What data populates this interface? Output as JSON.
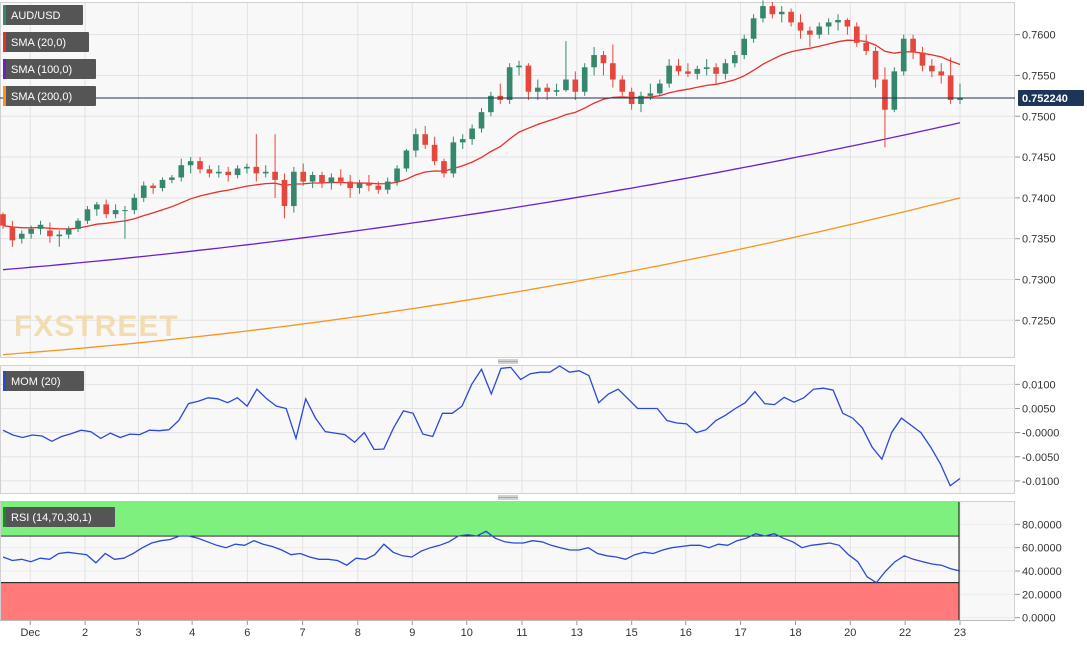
{
  "chart_data": [
    {
      "type": "candlestick",
      "symbol": "AUD/USD",
      "last_price_label": "0.752240",
      "last_price": 0.75224,
      "indicators": [
        {
          "label": "SMA (20,0)",
          "color": "#e8302a"
        },
        {
          "label": "SMA (100,0)",
          "color": "#6a1fd1"
        },
        {
          "label": "SMA (200,0)",
          "color": "#f7941d"
        }
      ],
      "y_ticks": [
        "0.7600",
        "0.7550",
        "0.7500",
        "0.7450",
        "0.7400",
        "0.7350",
        "0.7300",
        "0.7250"
      ],
      "ylim": [
        0.7205,
        0.764
      ],
      "x_ticks": [
        "Dec",
        "2",
        "3",
        "4",
        "6",
        "7",
        "8",
        "9",
        "10",
        "11",
        "13",
        "15",
        "16",
        "17",
        "18",
        "20",
        "22",
        "23"
      ],
      "candles": [
        [
          0.738,
          0.7382,
          0.7362,
          0.7366
        ],
        [
          0.7364,
          0.7372,
          0.734,
          0.7348
        ],
        [
          0.735,
          0.736,
          0.7344,
          0.7356
        ],
        [
          0.7356,
          0.7366,
          0.735,
          0.7362
        ],
        [
          0.7362,
          0.7372,
          0.7355,
          0.7367
        ],
        [
          0.736,
          0.737,
          0.7345,
          0.7353
        ],
        [
          0.7353,
          0.736,
          0.734,
          0.7355
        ],
        [
          0.7355,
          0.7365,
          0.735,
          0.7362
        ],
        [
          0.7362,
          0.7375,
          0.7358,
          0.7372
        ],
        [
          0.7372,
          0.739,
          0.7368,
          0.7386
        ],
        [
          0.7386,
          0.7395,
          0.7378,
          0.7392
        ],
        [
          0.7392,
          0.7398,
          0.7375,
          0.738
        ],
        [
          0.738,
          0.7392,
          0.7375,
          0.7385
        ],
        [
          0.7385,
          0.739,
          0.735,
          0.7385
        ],
        [
          0.7385,
          0.7405,
          0.738,
          0.74
        ],
        [
          0.74,
          0.742,
          0.7395,
          0.7415
        ],
        [
          0.7415,
          0.7418,
          0.7405,
          0.7412
        ],
        [
          0.7412,
          0.7425,
          0.7408,
          0.7422
        ],
        [
          0.7422,
          0.7428,
          0.7418,
          0.7425
        ],
        [
          0.7425,
          0.7448,
          0.742,
          0.744
        ],
        [
          0.744,
          0.745,
          0.743,
          0.7445
        ],
        [
          0.7445,
          0.745,
          0.743,
          0.7435
        ],
        [
          0.7435,
          0.744,
          0.7425,
          0.743
        ],
        [
          0.743,
          0.744,
          0.7425,
          0.7432
        ],
        [
          0.7432,
          0.7438,
          0.742,
          0.7428
        ],
        [
          0.7428,
          0.744,
          0.7424,
          0.7436
        ],
        [
          0.7436,
          0.7442,
          0.743,
          0.7438
        ],
        [
          0.7438,
          0.7478,
          0.742,
          0.743
        ],
        [
          0.743,
          0.744,
          0.7425,
          0.7432
        ],
        [
          0.7432,
          0.7478,
          0.74,
          0.7422
        ],
        [
          0.7422,
          0.743,
          0.7375,
          0.739
        ],
        [
          0.739,
          0.7438,
          0.7382,
          0.7432
        ],
        [
          0.7432,
          0.7442,
          0.7415,
          0.742
        ],
        [
          0.742,
          0.7432,
          0.7412,
          0.7428
        ],
        [
          0.7428,
          0.7432,
          0.7412,
          0.7418
        ],
        [
          0.7418,
          0.743,
          0.741,
          0.7425
        ],
        [
          0.7425,
          0.7435,
          0.7415,
          0.742
        ],
        [
          0.742,
          0.7428,
          0.74,
          0.7412
        ],
        [
          0.7412,
          0.7422,
          0.7405,
          0.7418
        ],
        [
          0.7418,
          0.7428,
          0.7408,
          0.7415
        ],
        [
          0.7415,
          0.742,
          0.7405,
          0.741
        ],
        [
          0.741,
          0.7425,
          0.7405,
          0.742
        ],
        [
          0.742,
          0.744,
          0.7415,
          0.7436
        ],
        [
          0.7436,
          0.746,
          0.7432,
          0.7458
        ],
        [
          0.7458,
          0.7485,
          0.745,
          0.7478
        ],
        [
          0.7478,
          0.7488,
          0.746,
          0.7465
        ],
        [
          0.7465,
          0.7475,
          0.744,
          0.7445
        ],
        [
          0.7445,
          0.7448,
          0.7425,
          0.743
        ],
        [
          0.743,
          0.7475,
          0.7425,
          0.7468
        ],
        [
          0.7468,
          0.7478,
          0.746,
          0.7472
        ],
        [
          0.7472,
          0.749,
          0.7465,
          0.7485
        ],
        [
          0.7485,
          0.751,
          0.748,
          0.7505
        ],
        [
          0.7505,
          0.753,
          0.75,
          0.7525
        ],
        [
          0.7525,
          0.754,
          0.7515,
          0.752
        ],
        [
          0.752,
          0.7565,
          0.7515,
          0.756
        ],
        [
          0.756,
          0.7568,
          0.755,
          0.7562
        ],
        [
          0.7562,
          0.7565,
          0.752,
          0.753
        ],
        [
          0.753,
          0.7545,
          0.752,
          0.7535
        ],
        [
          0.7535,
          0.754,
          0.752,
          0.753
        ],
        [
          0.753,
          0.754,
          0.7525,
          0.7532
        ],
        [
          0.7532,
          0.7592,
          0.753,
          0.7545
        ],
        [
          0.7545,
          0.7555,
          0.752,
          0.753
        ],
        [
          0.753,
          0.7565,
          0.7525,
          0.756
        ],
        [
          0.756,
          0.7585,
          0.755,
          0.7575
        ],
        [
          0.7575,
          0.758,
          0.755,
          0.7565
        ],
        [
          0.7565,
          0.7588,
          0.7535,
          0.7545
        ],
        [
          0.7545,
          0.755,
          0.7525,
          0.753
        ],
        [
          0.753,
          0.7535,
          0.7508,
          0.7515
        ],
        [
          0.7515,
          0.753,
          0.7505,
          0.7525
        ],
        [
          0.7525,
          0.754,
          0.752,
          0.7528
        ],
        [
          0.7528,
          0.7545,
          0.7525,
          0.754
        ],
        [
          0.754,
          0.757,
          0.7535,
          0.7562
        ],
        [
          0.7562,
          0.757,
          0.755,
          0.7555
        ],
        [
          0.7555,
          0.7565,
          0.7548,
          0.7552
        ],
        [
          0.7552,
          0.7562,
          0.7545,
          0.7558
        ],
        [
          0.7558,
          0.757,
          0.755,
          0.756
        ],
        [
          0.756,
          0.7565,
          0.754,
          0.7552
        ],
        [
          0.7552,
          0.757,
          0.7545,
          0.7565
        ],
        [
          0.7565,
          0.758,
          0.756,
          0.7575
        ],
        [
          0.7575,
          0.76,
          0.757,
          0.7595
        ],
        [
          0.7595,
          0.7625,
          0.759,
          0.762
        ],
        [
          0.762,
          0.7642,
          0.7615,
          0.7635
        ],
        [
          0.7635,
          0.764,
          0.762,
          0.7625
        ],
        [
          0.7625,
          0.7635,
          0.7615,
          0.7628
        ],
        [
          0.7628,
          0.7632,
          0.761,
          0.7615
        ],
        [
          0.7615,
          0.7625,
          0.7595,
          0.7605
        ],
        [
          0.7605,
          0.761,
          0.7585,
          0.76
        ],
        [
          0.76,
          0.7615,
          0.7595,
          0.761
        ],
        [
          0.761,
          0.762,
          0.76,
          0.7615
        ],
        [
          0.7615,
          0.7625,
          0.7605,
          0.7618
        ],
        [
          0.7618,
          0.762,
          0.76,
          0.761
        ],
        [
          0.761,
          0.7615,
          0.7585,
          0.759
        ],
        [
          0.759,
          0.76,
          0.7575,
          0.758
        ],
        [
          0.758,
          0.7585,
          0.7535,
          0.7545
        ],
        [
          0.7545,
          0.756,
          0.7462,
          0.7508
        ],
        [
          0.7508,
          0.756,
          0.7505,
          0.7555
        ],
        [
          0.7555,
          0.76,
          0.755,
          0.7595
        ],
        [
          0.7595,
          0.76,
          0.757,
          0.7578
        ],
        [
          0.7578,
          0.7585,
          0.7555,
          0.7562
        ],
        [
          0.7562,
          0.757,
          0.7548,
          0.7555
        ],
        [
          0.7555,
          0.7565,
          0.754,
          0.755
        ],
        [
          0.755,
          0.7572,
          0.7515,
          0.752
        ],
        [
          0.752,
          0.754,
          0.7515,
          0.7522
        ]
      ]
    },
    {
      "type": "line",
      "title": "MOM (20)",
      "color": "#2a49d6",
      "y_ticks": [
        "0.0100",
        "0.0050",
        "-0.0000",
        "-0.0050",
        "-0.0100"
      ],
      "ylim": [
        -0.0125,
        0.014
      ],
      "values": [
        0.0005,
        -0.0005,
        -0.001,
        -0.0005,
        -0.0007,
        -0.0018,
        -0.0008,
        -0.0002,
        0.0005,
        0.0002,
        -0.0012,
        -0.0001,
        -0.001,
        -0.0003,
        -0.0004,
        0.0005,
        0.0004,
        0.0006,
        0.0025,
        0.006,
        0.0065,
        0.0072,
        0.007,
        0.0062,
        0.0072,
        0.0055,
        0.009,
        0.007,
        0.0055,
        0.005,
        -0.0012,
        0.007,
        0.003,
        0.0002,
        -0.0001,
        -0.0004,
        -0.002,
        0.0,
        -0.0035,
        -0.0034,
        0.001,
        0.0045,
        0.004,
        -0.0003,
        -0.0008,
        0.004,
        0.004,
        0.0055,
        0.01,
        0.0131,
        0.008,
        0.0133,
        0.0135,
        0.011,
        0.0122,
        0.0125,
        0.0125,
        0.0138,
        0.0125,
        0.0128,
        0.0118,
        0.0062,
        0.008,
        0.009,
        0.007,
        0.005,
        0.005,
        0.005,
        0.0025,
        0.002,
        0.0018,
        0.0,
        0.0006,
        0.0025,
        0.0036,
        0.005,
        0.0062,
        0.0085,
        0.006,
        0.0058,
        0.0073,
        0.0063,
        0.0072,
        0.009,
        0.0092,
        0.0088,
        0.004,
        0.003,
        0.001,
        -0.003,
        -0.0055,
        0.0,
        0.003,
        0.0015,
        0.0,
        -0.003,
        -0.0065,
        -0.011,
        -0.0095
      ]
    },
    {
      "type": "line",
      "title": "RSI (14,70,30,1)",
      "color": "#2a49d6",
      "y_ticks": [
        "80.0000",
        "60.0000",
        "40.0000",
        "20.0000",
        "0.0000"
      ],
      "ylim": [
        -2,
        100
      ],
      "overbought": 70,
      "oversold": 30,
      "values": [
        52,
        49,
        50,
        48,
        51,
        50,
        55,
        56,
        55,
        54,
        47,
        55,
        50,
        51,
        55,
        60,
        64,
        66,
        67,
        70,
        70,
        68,
        65,
        62,
        60,
        63,
        62,
        66,
        63,
        61,
        58,
        54,
        55,
        52,
        50,
        50,
        49,
        45,
        51,
        50,
        54,
        63,
        56,
        53,
        52,
        57,
        60,
        62,
        65,
        70,
        71,
        70,
        74,
        68,
        65,
        64,
        64,
        66,
        65,
        62,
        60,
        58,
        58,
        60,
        55,
        53,
        52,
        50,
        54,
        56,
        55,
        58,
        60,
        61,
        62,
        62,
        60,
        63,
        62,
        66,
        68,
        72,
        70,
        72,
        68,
        65,
        60,
        62,
        63,
        64,
        62,
        54,
        48,
        35,
        30,
        40,
        48,
        53,
        50,
        48,
        46,
        45,
        42,
        40
      ]
    }
  ],
  "watermark": "FXSTREET",
  "colors": {
    "up": "#35886e",
    "down": "#e5473c",
    "grid": "#e2e2e2",
    "panel_bg": "#f8f8f8"
  }
}
